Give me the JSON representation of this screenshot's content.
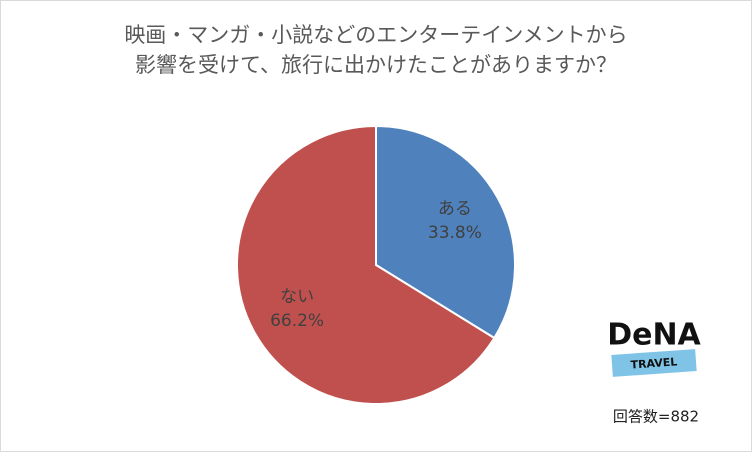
{
  "chart_data": {
    "type": "pie",
    "title": [
      "映画・マンガ・小説などのエンターテインメントから",
      "影響を受けて、旅行に出かけたことがありますか？"
    ],
    "categories": [
      "ある",
      "ない"
    ],
    "values": [
      33.8,
      66.2
    ],
    "value_labels": [
      "33.8%",
      "66.2%"
    ],
    "colors": [
      "#4f81bd",
      "#c0504d"
    ],
    "annotation": "回答数=882"
  },
  "logo": {
    "name": "DeNA",
    "sub": "TRAVEL"
  }
}
